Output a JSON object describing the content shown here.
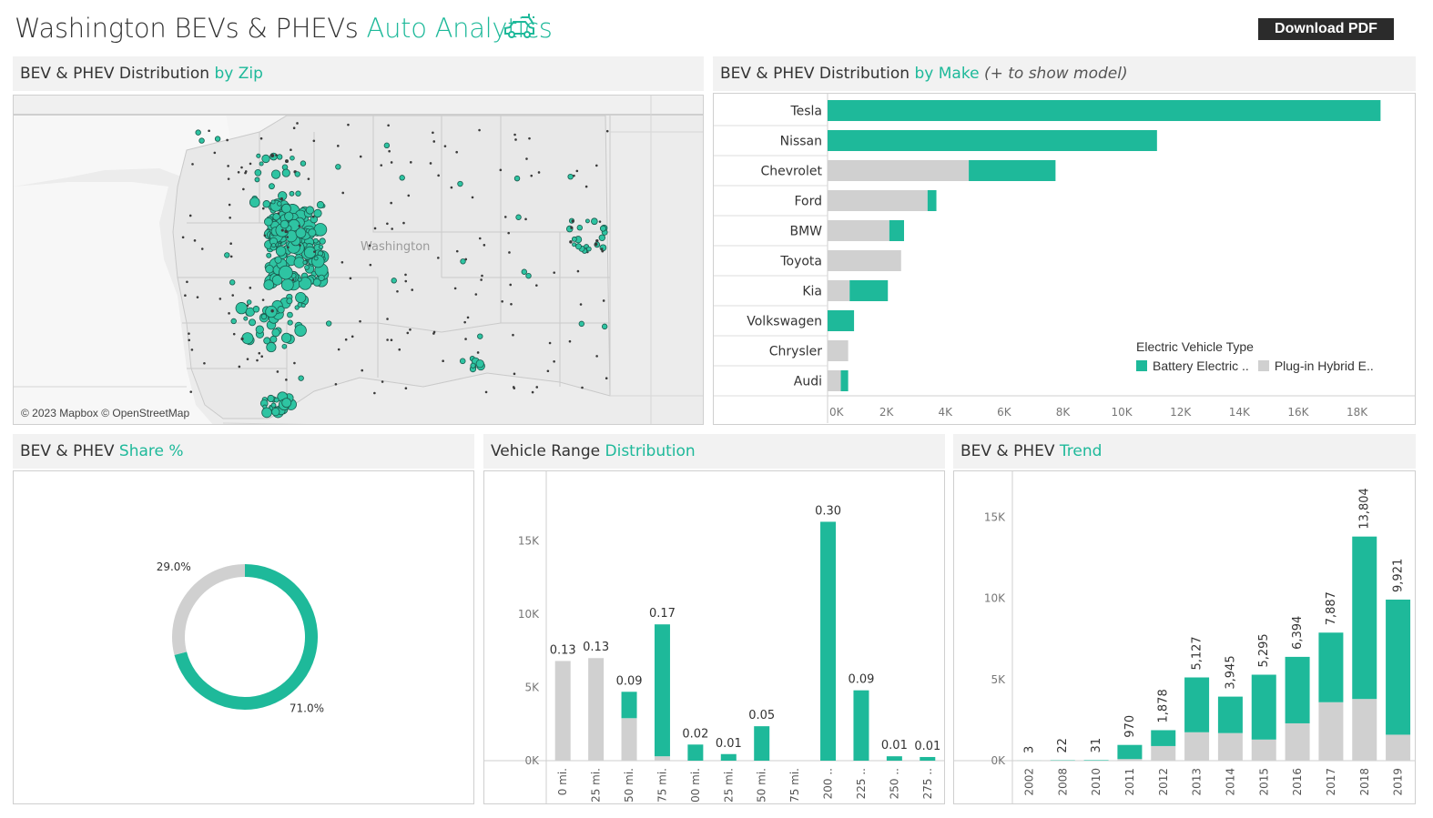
{
  "header": {
    "title_main": "Washington BEVs & PHEVs",
    "title_accent": "Auto Analytics",
    "icon": "ev-car-icon",
    "download_label": "Download PDF"
  },
  "colors": {
    "accent": "#1eb99a",
    "bev": "#1eb99a",
    "phev": "#d0d0d0",
    "panel_header": "#f2f2f2"
  },
  "panels": {
    "zip": {
      "title": "BEV & PHEV Distribution",
      "title_accent": "by Zip",
      "map_label": "Washington",
      "credit": "© 2023 Mapbox © OpenStreetMap"
    },
    "make": {
      "title": "BEV & PHEV Distribution",
      "title_accent": "by Make",
      "note": "(+ to show model)"
    },
    "share": {
      "title": "BEV & PHEV",
      "title_accent": "Share %"
    },
    "range": {
      "title": "Vehicle Range",
      "title_accent": "Distribution"
    },
    "trend": {
      "title": "BEV & PHEV",
      "title_accent": "Trend"
    }
  },
  "legend": {
    "title": "Electric Vehicle Type",
    "items": [
      {
        "label": "Battery Electric ..",
        "color": "#1eb99a"
      },
      {
        "label": "Plug-in Hybrid E..",
        "color": "#d0d0d0"
      }
    ]
  },
  "chart_data": [
    {
      "id": "make",
      "type": "bar",
      "orientation": "horizontal",
      "stacked": true,
      "categories": [
        "Tesla",
        "Nissan",
        "Chevrolet",
        "Ford",
        "BMW",
        "Toyota",
        "Kia",
        "Volkswagen",
        "Chrysler",
        "Audi"
      ],
      "series": [
        {
          "name": "Plug-in Hybrid E..",
          "color": "#d0d0d0",
          "values": [
            0,
            0,
            4800,
            3400,
            2100,
            2500,
            750,
            0,
            700,
            450
          ]
        },
        {
          "name": "Battery Electric ..",
          "color": "#1eb99a",
          "values": [
            18800,
            11200,
            2950,
            300,
            500,
            0,
            1300,
            900,
            0,
            250
          ]
        }
      ],
      "xlim": [
        0,
        19500
      ],
      "xticks": [
        "0K",
        "2K",
        "4K",
        "6K",
        "8K",
        "10K",
        "12K",
        "14K",
        "16K",
        "18K"
      ],
      "xtick_values": [
        0,
        2000,
        4000,
        6000,
        8000,
        10000,
        12000,
        14000,
        16000,
        18000
      ]
    },
    {
      "id": "share",
      "type": "pie",
      "donut": true,
      "slices": [
        {
          "name": "Battery Electric ..",
          "value": 71.0,
          "label": "71.0%",
          "color": "#1eb99a"
        },
        {
          "name": "Plug-in Hybrid E..",
          "value": 29.0,
          "label": "29.0%",
          "color": "#d0d0d0"
        }
      ]
    },
    {
      "id": "range",
      "type": "bar",
      "stacked": true,
      "categories": [
        "0 mi.",
        "25 mi.",
        "50 mi.",
        "75 mi.",
        "100 mi.",
        "125 mi.",
        "150 mi.",
        "175 mi.",
        "200 ..",
        "225 ..",
        "250 ..",
        "275 .."
      ],
      "series": [
        {
          "name": "Plug-in Hybrid E..",
          "color": "#d0d0d0",
          "values": [
            6800,
            7000,
            2900,
            300,
            0,
            0,
            0,
            0,
            0,
            0,
            0,
            0
          ]
        },
        {
          "name": "Battery Electric ..",
          "color": "#1eb99a",
          "values": [
            0,
            0,
            1800,
            9000,
            1100,
            450,
            2350,
            0,
            16300,
            4800,
            300,
            250
          ]
        }
      ],
      "data_labels": [
        "0.13",
        "0.13",
        "0.09",
        "0.17",
        "0.02",
        "0.01",
        "0.05",
        "",
        "0.30",
        "0.09",
        "0.01",
        "0.01"
      ],
      "ylim": [
        0,
        18500
      ],
      "yticks": [
        "0K",
        "5K",
        "10K",
        "15K"
      ],
      "ytick_values": [
        0,
        5000,
        10000,
        15000
      ]
    },
    {
      "id": "trend",
      "type": "bar",
      "stacked": true,
      "categories": [
        "2002",
        "2008",
        "2010",
        "2011",
        "2012",
        "2013",
        "2014",
        "2015",
        "2016",
        "2017",
        "2018",
        "2019"
      ],
      "series": [
        {
          "name": "Plug-in Hybrid E..",
          "color": "#d0d0d0",
          "values": [
            0,
            0,
            0,
            100,
            900,
            1750,
            1700,
            1300,
            2300,
            3600,
            3800,
            1600
          ]
        },
        {
          "name": "Battery Electric ..",
          "color": "#1eb99a",
          "values": [
            3,
            22,
            31,
            870,
            978,
            3377,
            2245,
            3995,
            4094,
            4287,
            10004,
            8321
          ]
        }
      ],
      "data_labels": [
        "3",
        "22",
        "31",
        "970",
        "1,878",
        "5,127",
        "3,945",
        "5,295",
        "6,394",
        "7,887",
        "13,804",
        "9,921"
      ],
      "ylim": [
        0,
        16700
      ],
      "yticks": [
        "0K",
        "5K",
        "10K",
        "15K"
      ],
      "ytick_values": [
        0,
        5000,
        10000,
        15000
      ]
    }
  ]
}
